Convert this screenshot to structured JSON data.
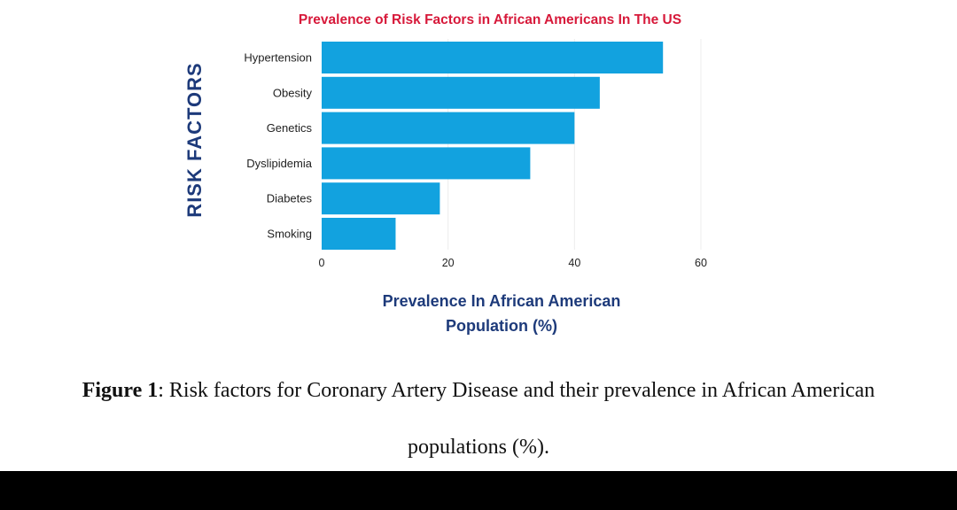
{
  "chart_data": {
    "type": "bar",
    "orientation": "horizontal",
    "title": "Prevalence of Risk Factors in African Americans In The US",
    "xlabel_lines": [
      "Prevalence In African American",
      "Population (%)"
    ],
    "ylabel": "RISK FACTORS",
    "categories": [
      "Hypertension",
      "Obesity",
      "Genetics",
      "Dyslipidemia",
      "Diabetes",
      "Smoking"
    ],
    "values": [
      54,
      44,
      40,
      33,
      18.7,
      11.7
    ],
    "xlim": [
      0,
      60
    ],
    "xticks": [
      0,
      20,
      40,
      60
    ],
    "grid": true,
    "colors": {
      "bar": "#12a2df",
      "title": "#d7193a",
      "axis_label": "#1d3a7a",
      "tick": "#222222",
      "grid": "#ececec"
    }
  },
  "caption": {
    "label": "Figure 1",
    "text_line1": ": Risk factors for Coronary Artery Disease and their prevalence in African American",
    "text_line2": "populations (%)."
  }
}
